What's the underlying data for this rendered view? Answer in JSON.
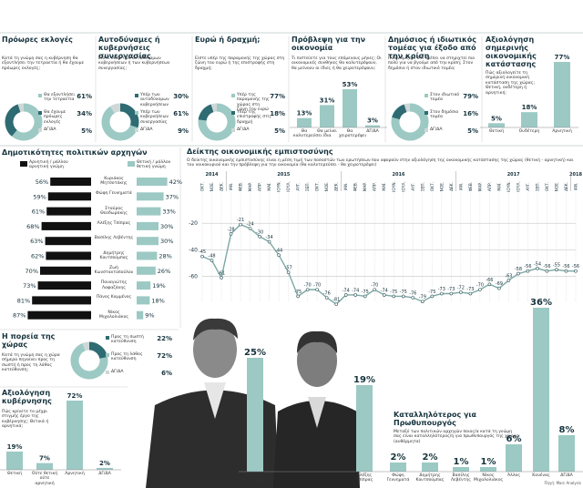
{
  "chart_data": [
    {
      "type": "donut",
      "title": "Πρόωρες εκλογές",
      "subtitle": "Κατά τη γνώμη σας η κυβέρνηση θα εξαντλήσει την τετραετία ή θα έχουμε πρόωρες εκλογές;",
      "categories": [
        "Θα εξαντλήσει την τετραετία",
        "Θα έχουμε πρόωρες εκλογές",
        "ΔΓ/ΔΑ"
      ],
      "values": [
        61,
        34,
        5
      ],
      "value_labels": [
        "61%",
        "34%",
        "5%"
      ],
      "colors": [
        "#9cc9c4",
        "#2e6b73",
        "#cfd8d7"
      ]
    },
    {
      "type": "donut",
      "title": "Αυτοδύναμες ή κυβερνήσεις συνεργασίας",
      "subtitle": "Είστε υπέρ των αυτοδύναμων κυβερνήσεων ή των κυβερνήσεων συνεργασίας;",
      "categories": [
        "Υπέρ των αυτοδύναμων κυβερνήσεων",
        "Υπέρ των κυβερνήσεων συνεργασίας",
        "ΔΓ/ΔΑ"
      ],
      "values": [
        30,
        61,
        9
      ],
      "value_labels": [
        "30%",
        "61%",
        "9%"
      ],
      "colors": [
        "#2e6b73",
        "#9cc9c4",
        "#cfd8d7"
      ]
    },
    {
      "type": "donut",
      "title": "Ευρώ ή δραχμή;",
      "subtitle": "Είστε υπέρ της παραμονής της χώρας στη ζώνη του ευρώ ή της επιστροφής στη δραχμή;",
      "categories": [
        "Υπέρ της παραμονής της χώρας στη ζώνη του ευρώ",
        "Υπέρ της επιστροφής στη δραχμή",
        "ΔΓ/ΔΑ"
      ],
      "values": [
        77,
        18,
        5
      ],
      "value_labels": [
        "77%",
        "18%",
        "5%"
      ],
      "colors": [
        "#9cc9c4",
        "#2e6b73",
        "#cfd8d7"
      ]
    },
    {
      "type": "bar",
      "title": "Πρόβλεψη για την οικονομία",
      "subtitle": "Τι πιστεύετε για τους επόμενους μήνες; Οι οικονομικές συνθήκες θα καλυτερέψουν, θα μείνουν οι ίδιες ή θα χειροτερέψουν;",
      "categories": [
        "Θα καλυτερεύσει",
        "Θα μείνει ίδια",
        "Θα χειροτερέψει",
        "ΔΓ/ΔΑ"
      ],
      "values": [
        13,
        31,
        53,
        3
      ],
      "value_labels": [
        "13%",
        "31%",
        "53%",
        "3%"
      ],
      "color": "#9cc9c4"
    },
    {
      "type": "donut",
      "title": "Δημόσιος ή ιδιωτικός τομέας για έξοδο από την κρίση",
      "subtitle": "Πού νομίζετε ότι πρέπει να στηριχτεί πιο πολύ για να βγούμε από την κρίση; Στον δημόσιο ή στον ιδιωτικό τομέα;",
      "categories": [
        "Στον ιδιωτικό τομέα",
        "Στον δημόσιο τομέα",
        "ΔΓ/ΔΑ"
      ],
      "values": [
        79,
        16,
        5
      ],
      "value_labels": [
        "79%",
        "16%",
        "5%"
      ],
      "colors": [
        "#9cc9c4",
        "#2e6b73",
        "#cfd8d7"
      ]
    },
    {
      "type": "bar",
      "title": "Αξιολόγηση σημερινής οικονομικής κατάστασης",
      "subtitle": "Πώς αξιολογείτε τη σημερινή οικονομική κατάσταση της χώρας; Θετική, ουδέτερη ή αρνητική;",
      "categories": [
        "Θετική",
        "Ουδέτερη",
        "Αρνητική"
      ],
      "values": [
        5,
        18,
        77
      ],
      "value_labels": [
        "5%",
        "18%",
        "77%"
      ],
      "color": "#9cc9c4"
    },
    {
      "type": "diverging",
      "title": "Δημοτικότητες πολιτικών αρχηγών",
      "categories": [
        "Κυριάκος Μητσοτάκης",
        "Φώφη Γεννηματά",
        "Σταύρος Θεοδωράκης",
        "Αλέξης Τσίπρας",
        "Βασίλης Λεβέντης",
        "Δημήτρης Κουτσούμπας",
        "Ζωή Κωνσταντοπούλου",
        "Παναγιώτης Λαφαζάνης",
        "Πάνος Καμμένος",
        "Νίκος Μιχαλολιάκος"
      ],
      "series": [
        {
          "name": "Αρνητική / μάλλον αρνητική γνώμη",
          "color": "#111111",
          "values": [
            56,
            59,
            61,
            68,
            63,
            62,
            70,
            73,
            81,
            87
          ],
          "value_labels": [
            "56%",
            "59%",
            "61%",
            "68%",
            "63%",
            "62%",
            "70%",
            "73%",
            "81%",
            "87%"
          ]
        },
        {
          "name": "Θετική / μάλλον θετική γνώμη",
          "color": "#9cc9c4",
          "values": [
            42,
            37,
            33,
            30,
            30,
            28,
            26,
            19,
            18,
            9
          ],
          "value_labels": [
            "42%",
            "37%",
            "33%",
            "30%",
            "30%",
            "28%",
            "26%",
            "19%",
            "18%",
            "9%"
          ]
        }
      ]
    },
    {
      "type": "line",
      "title": "Δείκτης οικονομικής εμπιστοσύνης",
      "subtitle": "Ο δείκτης οικονομικής εμπιστοσύνης είναι η μέση τιμή των ποσοστών των ερωτήσεων που αφορούν στην αξιολόγηση της οικονομικής κατάστασης της χώρας (θετική - αρνητική) και του νοικοκυριού και την πρόβλεψη για την οικονομία (θα καλυτερεύσει - θα χειροτερέψει)",
      "years": [
        "2014",
        "2015",
        "2016",
        "2017",
        "2018"
      ],
      "categories": [
        "ΟΚΤ.",
        "ΝΟΕ.",
        "ΔΕΚ.",
        "ΙΑΝ.",
        "ΦΕΒ.",
        "ΜΑΡ.",
        "ΑΠΡ.",
        "ΜΑΪ.",
        "ΙΟΥΝ.",
        "ΙΟΥΛ.",
        "ΑΥΓ.",
        "ΣΕΠ.",
        "ΟΚΤ.",
        "ΝΟΕ.",
        "ΔΕΚ.",
        "ΙΑΝ.",
        "ΦΕΒ.",
        "ΜΑΡ.",
        "ΑΠΡ.",
        "ΜΑΪ.",
        "ΙΟΥΝ.",
        "ΙΟΥΛ.",
        "ΑΥΓ.",
        "ΣΕΠ.",
        "ΟΚΤ.",
        "ΝΟΕ.",
        "ΔΕΚ.",
        "ΙΑΝ.",
        "ΦΕΒ.",
        "ΜΑΡ.",
        "ΑΠΡ.",
        "ΜΑΪ.",
        "ΙΟΥΝ.",
        "ΙΟΥΛ.",
        "ΑΥΓ.",
        "ΣΕΠ.",
        "ΟΚΤ.",
        "ΝΟΕ.",
        "ΔΕΚ.",
        "ΙΑΝ."
      ],
      "values": [
        -45,
        -48,
        -61,
        -28,
        -21,
        -24,
        -30,
        -34,
        -44,
        -57,
        -75,
        -70,
        -70,
        -76,
        -81,
        -74,
        -74,
        -75,
        -70,
        -74,
        -75,
        -75,
        -76,
        -79,
        -75,
        -73,
        -73,
        -72,
        -73,
        -70,
        -66,
        -69,
        -63,
        -58,
        -56,
        -54,
        -56,
        -55,
        -56,
        -56
      ],
      "color": "#7aa9a4",
      "ylim": [
        -85,
        0
      ],
      "yticks": [
        -20,
        -40,
        -60
      ],
      "grid": true
    },
    {
      "type": "donut",
      "title": "Η πορεία της χώρας",
      "subtitle": "Κατά τη γνώμη σας η χώρα σήμερα πηγαίνει προς τη σωστή ή προς τη λάθος κατεύθυνση;",
      "categories": [
        "Προς τη σωστή κατεύθυνση",
        "Προς τη λάθος κατεύθυνση",
        "ΔΓ/ΔΑ"
      ],
      "values": [
        22,
        72,
        6
      ],
      "value_labels": [
        "22%",
        "72%",
        "6%"
      ],
      "colors": [
        "#2e6b73",
        "#9cc9c4",
        "#cfd8d7"
      ]
    },
    {
      "type": "bar",
      "title": "Αξιολόγηση κυβέρνησης",
      "subtitle": "Πώς κρίνετε το μέχρι στιγμής έργο της κυβέρνησης; Θετικά ή αρνητικά;",
      "categories": [
        "Θετική",
        "Ούτε θετική ούτε αρνητική",
        "Αρνητική",
        "ΔΓ/ΔΑ"
      ],
      "values": [
        19,
        7,
        72,
        2
      ],
      "value_labels": [
        "19%",
        "7%",
        "72%",
        "2%"
      ],
      "color": "#9cc9c4"
    },
    {
      "type": "bar",
      "title": "Καταλληλότερος για Πρωθυπουργός",
      "subtitle": "Μεταξύ των πολιτικών αρχηγών ποιος/α κατά τη γνώμη σας είναι καταλληλότερος/η για πρωθυπουργός της χώρας; (αυθόρμητα)",
      "categories": [
        "Κυριάκος Μητσοτάκης",
        "Αλέξης Τσίπρας",
        "Φώφη Γεννηματά",
        "Δημήτρης Κουτσούμπας",
        "Βασίλης Λεβέντης",
        "Νίκος Μιχαλολιάκος",
        "Άλλος",
        "Κανένας",
        "ΔΓ/ΔΑ"
      ],
      "values": [
        25,
        19,
        2,
        2,
        1,
        1,
        6,
        36,
        8
      ],
      "value_labels": [
        "25%",
        "19%",
        "2%",
        "2%",
        "1%",
        "1%",
        "6%",
        "36%",
        "8%"
      ],
      "color": "#9cc9c4"
    }
  ],
  "source": "Πηγή: Marc Analysis"
}
